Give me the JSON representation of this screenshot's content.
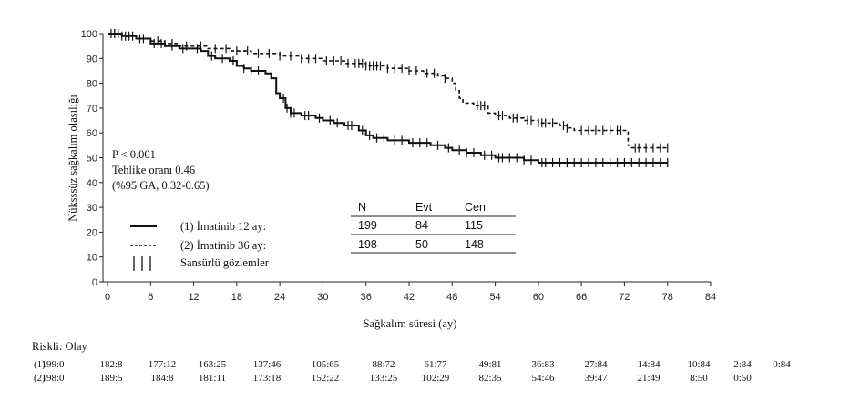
{
  "chart_data": {
    "type": "line",
    "subtype": "kaplan-meier",
    "ylabel": "Nüksssüz sağkalım olasılığı",
    "xlabel": "Sağkalım süresi (ay)",
    "xlim": [
      0,
      84
    ],
    "ylim": [
      0,
      100
    ],
    "x_ticks": [
      "0",
      "6",
      "12",
      "18",
      "24",
      "30",
      "36",
      "42",
      "48",
      "54",
      "60",
      "66",
      "72",
      "78",
      "84"
    ],
    "y_ticks": [
      "0",
      "10",
      "20",
      "30",
      "40",
      "50",
      "60",
      "70",
      "80",
      "90",
      "100"
    ],
    "grid": false,
    "annotations": [
      "P < 0.001",
      "Tehlike oranı 0.46",
      "(%95 GA, 0.32-0.65)"
    ],
    "legend": {
      "placement": "bottom-left",
      "entries": [
        {
          "label": "(1) İmatinib 12 ay:",
          "style": "solid"
        },
        {
          "label": "(2) İmatinib 36 ay:",
          "style": "dashed"
        },
        {
          "label": "Sansürlü gözlemler",
          "style": "censor-ticks"
        }
      ]
    },
    "summary_table": {
      "headers": [
        "N",
        "Evt",
        "Cen"
      ],
      "rows": [
        [
          "199",
          "84",
          "115"
        ],
        [
          "198",
          "50",
          "148"
        ]
      ]
    },
    "series": [
      {
        "name": "(1) İmatinib 12 ay:",
        "style": "solid",
        "points": [
          [
            0,
            100
          ],
          [
            2,
            99
          ],
          [
            4,
            98
          ],
          [
            6,
            96
          ],
          [
            8,
            95
          ],
          [
            10,
            94
          ],
          [
            12,
            94
          ],
          [
            13,
            93
          ],
          [
            14,
            91
          ],
          [
            15,
            90
          ],
          [
            17,
            89
          ],
          [
            18,
            87
          ],
          [
            19,
            86
          ],
          [
            20,
            85
          ],
          [
            21,
            85
          ],
          [
            22,
            84
          ],
          [
            22.8,
            82
          ],
          [
            23.5,
            76
          ],
          [
            24,
            74
          ],
          [
            24.8,
            70
          ],
          [
            25.5,
            68
          ],
          [
            27,
            67
          ],
          [
            29,
            66
          ],
          [
            30,
            65
          ],
          [
            31.5,
            64
          ],
          [
            33,
            63
          ],
          [
            35,
            61
          ],
          [
            36,
            59
          ],
          [
            37,
            58
          ],
          [
            39,
            57
          ],
          [
            42,
            56
          ],
          [
            45,
            55
          ],
          [
            47,
            54
          ],
          [
            48,
            53
          ],
          [
            50,
            52
          ],
          [
            52,
            51
          ],
          [
            54,
            50
          ],
          [
            58,
            49
          ],
          [
            60,
            48
          ],
          [
            78,
            48
          ]
        ],
        "censor_x": [
          1,
          1.5,
          2.5,
          3.5,
          4.5,
          6.5,
          7.5,
          9,
          10.5,
          12.5,
          14.5,
          16,
          17.5,
          19,
          20,
          21,
          24.5,
          25,
          25.5,
          26,
          27.5,
          28,
          29.5,
          31,
          32,
          33.5,
          34,
          35.5,
          36.5,
          37.5,
          38.5,
          40,
          41,
          42.5,
          43.5,
          44.5,
          46,
          47.5,
          49,
          50,
          51,
          52.5,
          53.5,
          54.5,
          55,
          56,
          57,
          58,
          59,
          60.5,
          61,
          62,
          63,
          64,
          65,
          66,
          67,
          68,
          69,
          70,
          71,
          72,
          73,
          74,
          75,
          76,
          77,
          78
        ]
      },
      {
        "name": "(2) İmatinib 36 ay:",
        "style": "dashed",
        "points": [
          [
            0,
            100
          ],
          [
            2,
            99
          ],
          [
            4,
            98
          ],
          [
            6,
            97
          ],
          [
            8,
            96
          ],
          [
            10,
            95
          ],
          [
            12,
            95
          ],
          [
            14,
            94
          ],
          [
            17,
            93
          ],
          [
            20,
            92
          ],
          [
            24,
            91
          ],
          [
            27,
            90
          ],
          [
            30,
            89
          ],
          [
            33,
            88
          ],
          [
            36,
            87
          ],
          [
            39,
            86
          ],
          [
            42,
            85
          ],
          [
            44,
            84
          ],
          [
            46,
            83
          ],
          [
            47,
            82
          ],
          [
            48,
            80
          ],
          [
            48.5,
            77
          ],
          [
            49,
            74
          ],
          [
            49.5,
            72
          ],
          [
            51,
            71
          ],
          [
            53,
            68
          ],
          [
            54,
            67
          ],
          [
            56,
            66
          ],
          [
            58,
            65
          ],
          [
            60,
            64
          ],
          [
            63,
            63
          ],
          [
            64,
            62
          ],
          [
            65,
            61
          ],
          [
            72,
            61
          ],
          [
            72.5,
            55
          ],
          [
            73,
            54
          ],
          [
            78,
            54
          ]
        ],
        "censor_x": [
          0.5,
          1,
          2,
          3,
          5,
          7,
          9,
          11,
          13,
          15,
          16.5,
          18,
          19.5,
          21,
          22.5,
          24,
          25.5,
          27,
          28,
          29,
          30.5,
          31.5,
          32.5,
          33.5,
          34.5,
          35,
          35.5,
          36,
          36.5,
          37,
          37.5,
          38,
          39,
          40,
          41,
          42,
          43,
          44.5,
          45.5,
          47,
          51.5,
          52,
          52.5,
          54.5,
          55,
          56.5,
          57,
          58.5,
          59,
          60,
          60.5,
          61,
          62,
          63.5,
          64,
          66,
          67,
          68,
          69,
          70,
          71,
          71.5,
          73.5,
          74,
          75,
          76,
          77,
          78
        ]
      }
    ],
    "risk_table": {
      "title": "Riskli: Olay",
      "rows": [
        {
          "label": "(1)",
          "values": [
            "199:0",
            "182:8",
            "177:12",
            "163:25",
            "137:46",
            "105:65",
            "88:72",
            "61:77",
            "49:81",
            "36:83",
            "27:84",
            "14:84",
            "10:84",
            "2:84",
            "0:84"
          ]
        },
        {
          "label": "(2)",
          "values": [
            "198:0",
            "189:5",
            "184:8",
            "181:11",
            "173:18",
            "152:22",
            "133:25",
            "102:29",
            "82:35",
            "54:46",
            "39:47",
            "21:49",
            "8:50",
            "0:50"
          ]
        }
      ]
    }
  }
}
